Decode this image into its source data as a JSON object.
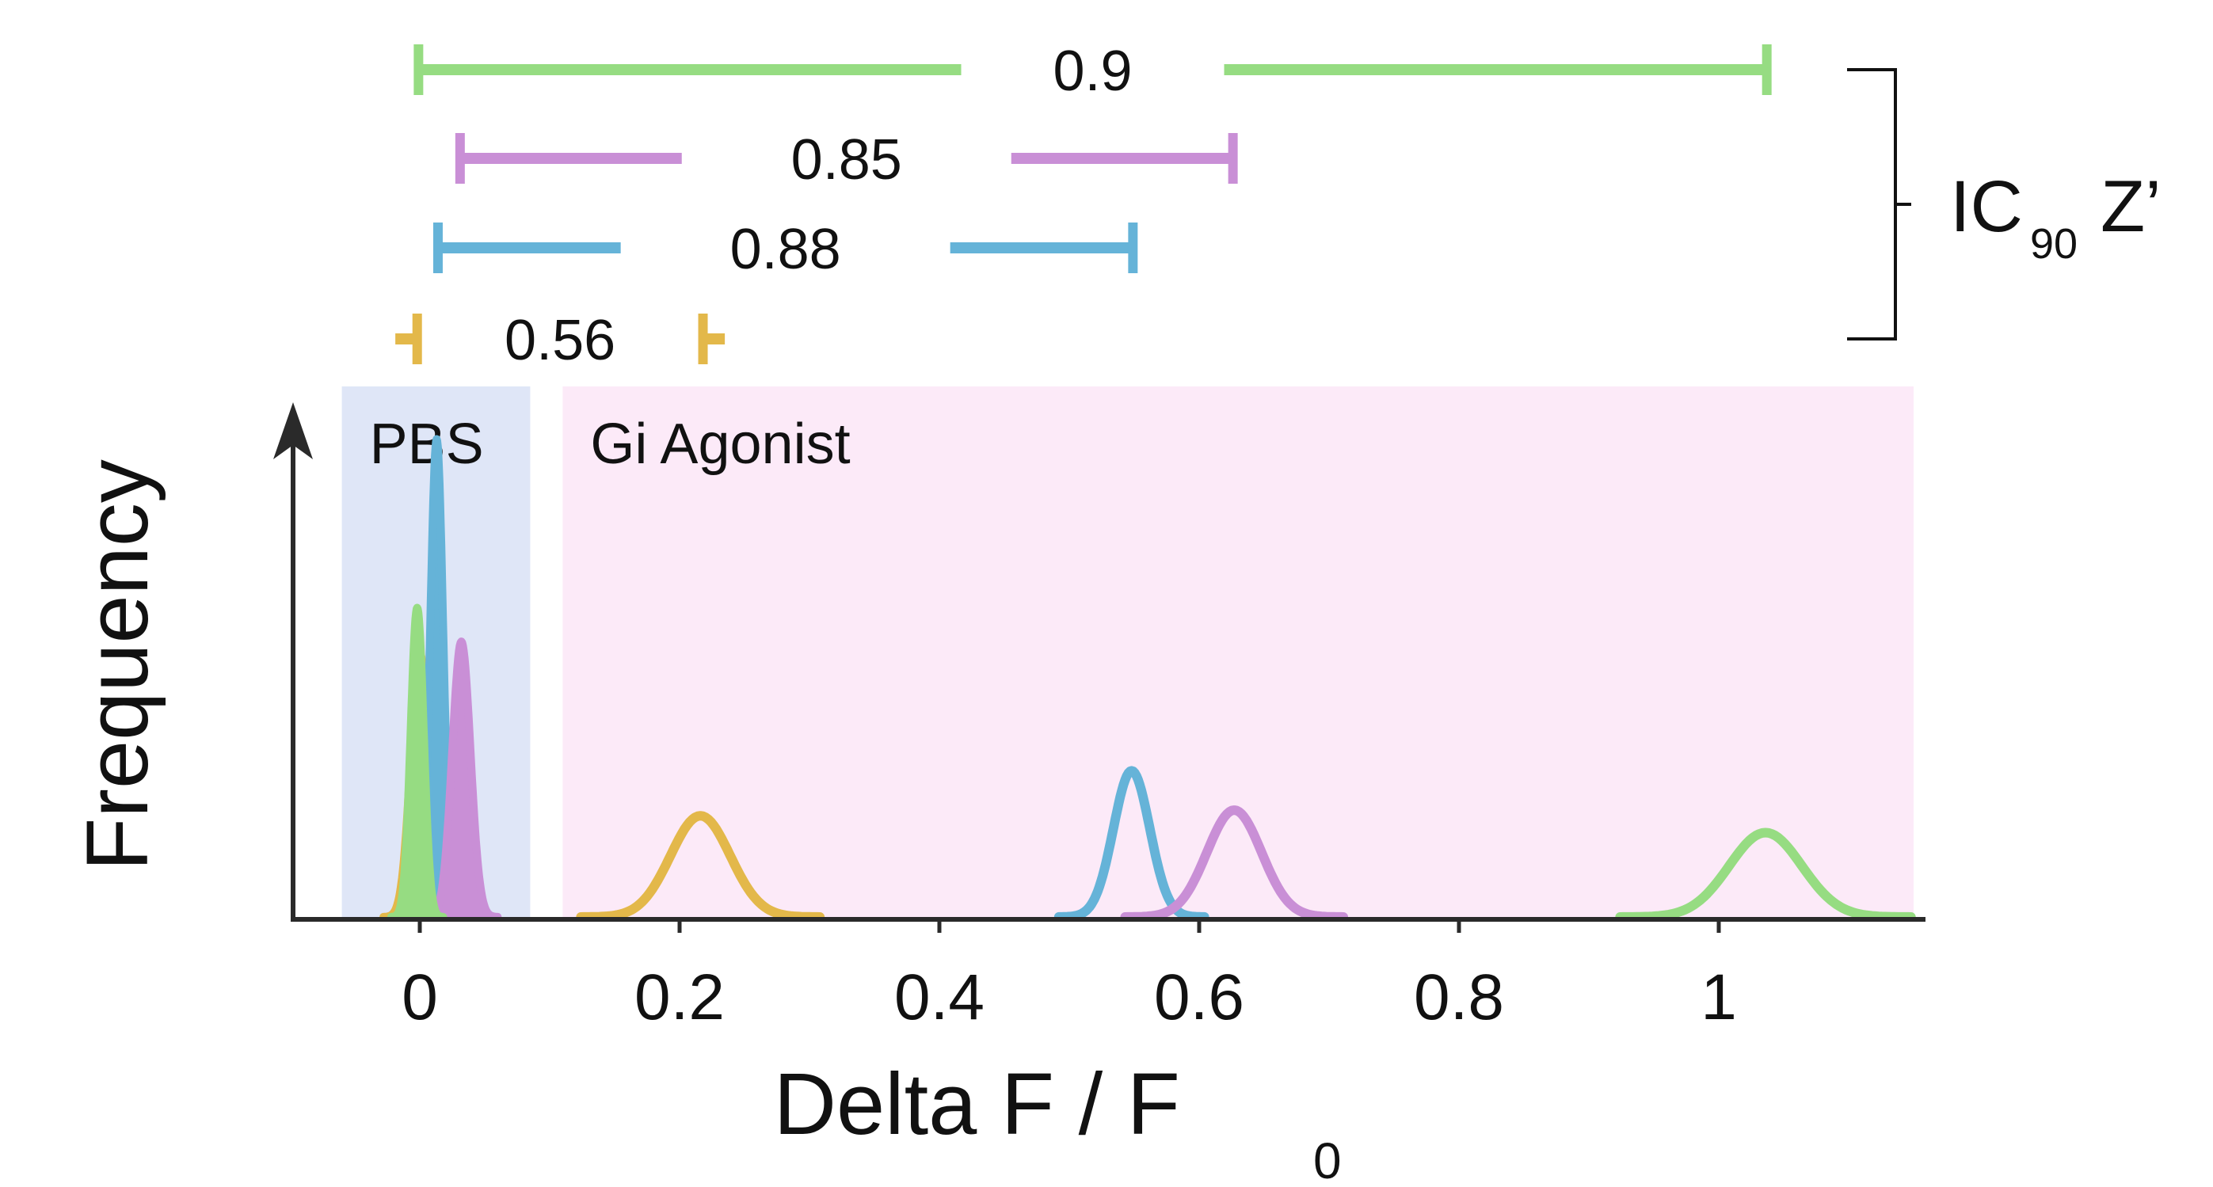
{
  "chart_data": {
    "type": "line",
    "xlabel_main": "Delta F / F",
    "xlabel_sub": "0",
    "ylabel": "Frequency",
    "xlim": [
      -0.1,
      1.15
    ],
    "x_ticks": [
      0,
      0.2,
      0.4,
      0.6,
      0.8,
      1
    ],
    "x_tick_labels": [
      "0",
      "0.2",
      "0.4",
      "0.6",
      "0.8",
      "1"
    ],
    "grid": false,
    "regions": [
      {
        "label": "PBS",
        "x_range": [
          -0.06,
          0.085
        ],
        "color": "#dfe6f7"
      },
      {
        "label": "Gi Agonist",
        "x_range": [
          0.11,
          1.15
        ],
        "color": "#fceaf8"
      }
    ],
    "series": [
      {
        "color": "#e3b84a",
        "negative_control": {
          "mean": 0.0,
          "sd": 0.007,
          "peak": 0.47
        },
        "positive_control": {
          "mean": 0.216,
          "sd": 0.023,
          "peak": 0.18
        },
        "window": {
          "start": -0.002,
          "end": 0.218,
          "zprime_label": "0.56"
        }
      },
      {
        "color": "#65b3d8",
        "negative_control": {
          "mean": 0.013,
          "sd": 0.005,
          "peak": 0.85
        },
        "positive_control": {
          "mean": 0.548,
          "sd": 0.014,
          "peak": 0.26
        },
        "window": {
          "start": 0.014,
          "end": 0.549,
          "zprime_label": "0.88"
        }
      },
      {
        "color": "#c98fd6",
        "negative_control": {
          "mean": 0.032,
          "sd": 0.007,
          "peak": 0.49
        },
        "positive_control": {
          "mean": 0.627,
          "sd": 0.021,
          "peak": 0.19
        },
        "window": {
          "start": 0.031,
          "end": 0.626,
          "zprime_label": "0.85"
        }
      },
      {
        "color": "#96dc82",
        "negative_control": {
          "mean": -0.002,
          "sd": 0.005,
          "peak": 0.55
        },
        "positive_control": {
          "mean": 1.036,
          "sd": 0.028,
          "peak": 0.15
        },
        "window": {
          "start": -0.001,
          "end": 1.037,
          "zprime_label": "0.9"
        }
      }
    ],
    "bracket_label_main": "IC",
    "bracket_label_sub": "90",
    "bracket_label_suffix": "Z’"
  }
}
